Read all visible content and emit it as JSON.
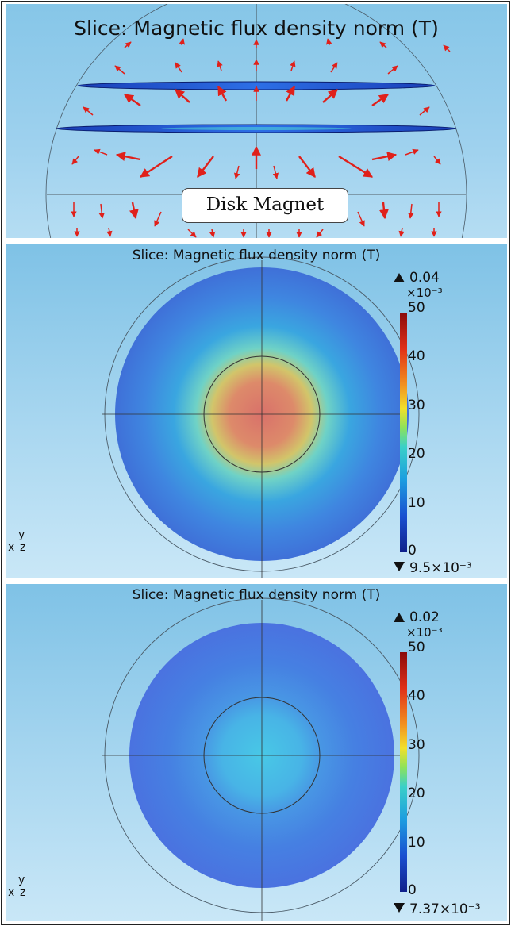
{
  "panels": [
    {
      "title": "Slice: Magnetic flux density norm (T)",
      "label": "Disk Magnet"
    },
    {
      "title": "Slice: Magnetic flux density norm (T)",
      "max_value": "0.04",
      "multiplier": "×10⁻³",
      "ticks": [
        "50",
        "40",
        "30",
        "20",
        "10",
        "0"
      ],
      "min_value": "9.5×10⁻³",
      "axes": {
        "y": "y",
        "x": "x",
        "z": "z"
      }
    },
    {
      "title": "Slice: Magnetic flux density norm (T)",
      "max_value": "0.02",
      "multiplier": "×10⁻³",
      "ticks": [
        "50",
        "40",
        "30",
        "20",
        "10",
        "0"
      ],
      "min_value": "7.37×10⁻³",
      "axes": {
        "y": "y",
        "x": "x",
        "z": "z"
      }
    }
  ],
  "colors": {
    "arrow": "#e0201a",
    "magnet_disk": "#1a4fd6",
    "background_top": "#7fc2e6",
    "background_bottom": "#c9e7f7"
  },
  "icons": {
    "max_marker": "up-triangle-icon",
    "min_marker": "down-triangle-icon"
  }
}
